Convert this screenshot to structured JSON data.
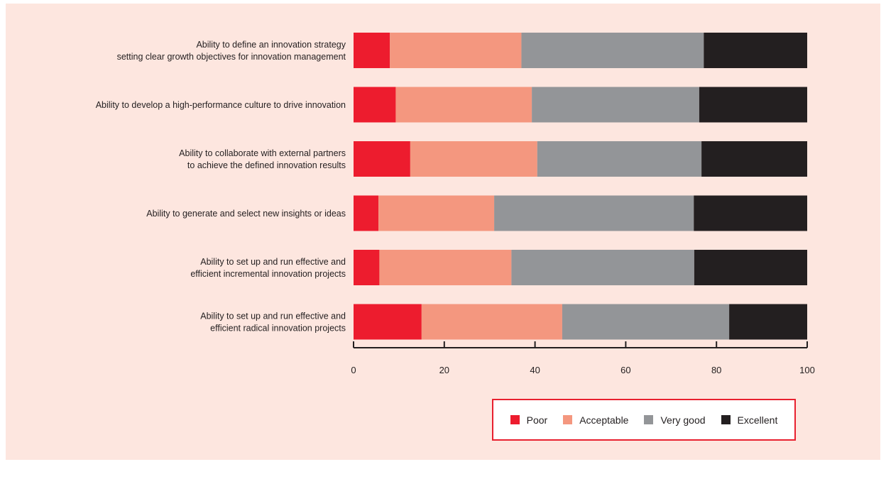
{
  "chart_data": {
    "type": "bar",
    "orientation": "horizontal",
    "stacked": true,
    "categories": [
      [
        "Ability to define an innovation strategy",
        "setting clear growth objectives for innovation management"
      ],
      [
        "Ability to develop a high-performance culture to drive innovation"
      ],
      [
        "Ability to collaborate with external partners",
        "to achieve the defined innovation results"
      ],
      [
        "Ability to generate and select new insights or ideas"
      ],
      [
        "Ability to set up and run effective and",
        "efficient incremental innovation projects"
      ],
      [
        "Ability to set up and run effective and",
        "efficient radical innovation projects"
      ]
    ],
    "series": [
      {
        "name": "Poor",
        "color": "#ed1c2e",
        "values": [
          8,
          9.3,
          12.5,
          5.5,
          5.7,
          15
        ]
      },
      {
        "name": "Acceptable",
        "color": "#f4977f",
        "values": [
          29,
          30,
          28,
          25.5,
          29.1,
          31
        ]
      },
      {
        "name": "Very good",
        "color": "#939598",
        "values": [
          40.2,
          36.9,
          36.2,
          44,
          40.3,
          36.8
        ]
      },
      {
        "name": "Excellent",
        "color": "#231f20",
        "values": [
          22.8,
          23.8,
          23.3,
          25,
          24.9,
          17.2
        ]
      }
    ],
    "xlim": [
      0,
      100
    ],
    "xticks": [
      0,
      20,
      40,
      60,
      80,
      100
    ],
    "xlabel": "",
    "ylabel": "",
    "title": "",
    "legend_position": "bottom-right",
    "grid": false
  }
}
